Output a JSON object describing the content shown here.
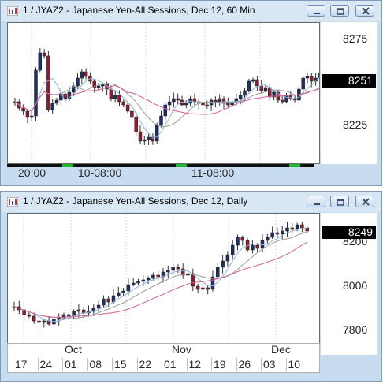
{
  "windows": [
    {
      "title": "1 / JYAZ2 - Japanese Yen-All Sessions, Dec 12, 60 Min",
      "price_ticks": [
        "8275",
        "8225"
      ],
      "last_price": "8251",
      "time_labels": [
        "20:00",
        "10-08:00",
        "11-08:00"
      ],
      "session_bar": [
        "black",
        "green",
        "black",
        "green",
        "black",
        "green",
        "black"
      ],
      "colors": {
        "bull": "#1f2f5f",
        "bear": "#8b1e2e",
        "ma_fast": "#8fb3d9",
        "ma_slow": "#d0609a",
        "ma_mid": "#9a9a9a"
      }
    },
    {
      "title": "1 / JYAZ2 - Japanese Yen-All Sessions, Dec 12, Daily",
      "price_ticks": [
        "8200",
        "8000",
        "7800"
      ],
      "last_price": "8249",
      "month_labels": [
        "Oct",
        "Nov",
        "Dec"
      ],
      "day_labels": [
        "17",
        "24",
        "01",
        "08",
        "15",
        "22",
        "01",
        "12",
        "19",
        "26",
        "03",
        "10"
      ],
      "colors": {
        "bull": "#1f2f5f",
        "bear": "#8b1e2e",
        "ma_fast": "#8fb3d9",
        "ma_slow": "#d0609a",
        "ma_mid": "#9a9a9a"
      }
    }
  ],
  "window_buttons": [
    "minimize-button",
    "restore-button",
    "close-button"
  ]
}
